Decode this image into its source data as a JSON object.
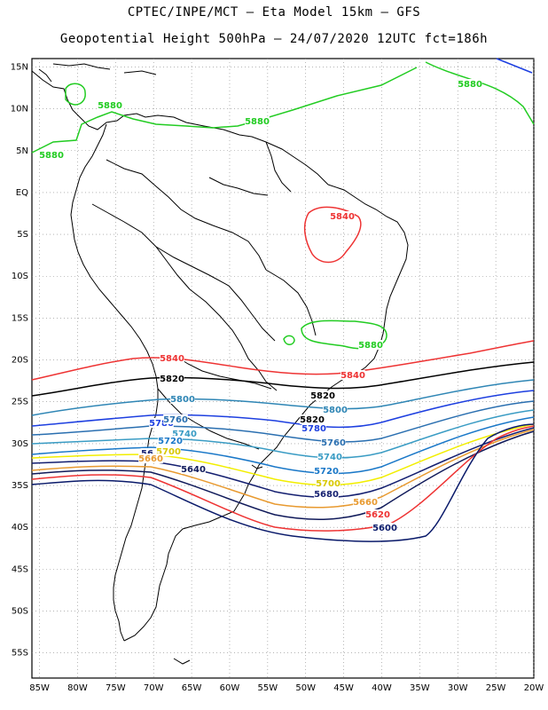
{
  "header": {
    "line1": "CPTEC/INPE/MCT –  Eta Model 15km – GFS",
    "line2": "Geopotential Height 500hPa – 24/07/2020 12UTC fct=186h"
  },
  "map": {
    "lon_range": [
      -86,
      -20
    ],
    "lat_range": [
      -58,
      16
    ],
    "x_ticks": [
      "85W",
      "80W",
      "75W",
      "70W",
      "65W",
      "60W",
      "55W",
      "50W",
      "45W",
      "40W",
      "35W",
      "30W",
      "25W",
      "20W"
    ],
    "y_ticks": [
      "15N",
      "10N",
      "5N",
      "EQ",
      "5S",
      "10S",
      "15S",
      "20S",
      "25S",
      "30S",
      "35S",
      "40S",
      "45S",
      "50S",
      "55S"
    ],
    "colors": {
      "5880": "#22cc22",
      "5840": "#ee3333",
      "5820": "#000000",
      "5800": "#2f86b5",
      "5780": "#1d3fe0",
      "5760": "#2a6fb0",
      "5740": "#3a9cc4",
      "5720": "#1a78c8",
      "5700": "#f2ee00",
      "5680": "#141f70",
      "5660": "#e89a30",
      "5640": "#101a5a",
      "5620": "#ee3333",
      "5600": "#0a1a6a",
      "coast": "#000000",
      "grid": "#888888"
    },
    "contour_labels": [
      {
        "text": "5880",
        "color": "#22cc22"
      },
      {
        "text": "5880",
        "color": "#22cc22"
      },
      {
        "text": "5880",
        "color": "#22cc22"
      },
      {
        "text": "5880",
        "color": "#22cc22"
      },
      {
        "text": "5880",
        "color": "#22cc22"
      },
      {
        "text": "5840",
        "color": "#ee3333"
      },
      {
        "text": "5840",
        "color": "#ee3333"
      },
      {
        "text": "5840",
        "color": "#ee3333"
      },
      {
        "text": "5820",
        "color": "#000000"
      },
      {
        "text": "5820",
        "color": "#000000"
      },
      {
        "text": "5820",
        "color": "#000000"
      },
      {
        "text": "5800",
        "color": "#2f86b5"
      },
      {
        "text": "5800",
        "color": "#2f86b5"
      },
      {
        "text": "5780",
        "color": "#1d3fe0"
      },
      {
        "text": "5780",
        "color": "#1d3fe0"
      },
      {
        "text": "5760",
        "color": "#2a6fb0"
      },
      {
        "text": "5760",
        "color": "#2a6fb0"
      },
      {
        "text": "5740",
        "color": "#3a9cc4"
      },
      {
        "text": "5740",
        "color": "#3a9cc4"
      },
      {
        "text": "5720",
        "color": "#1a78c8"
      },
      {
        "text": "5720",
        "color": "#1a78c8"
      },
      {
        "text": "5700",
        "color": "#d8c800"
      },
      {
        "text": "5700",
        "color": "#d8c800"
      },
      {
        "text": "56",
        "color": "#141f70"
      },
      {
        "text": "5680",
        "color": "#141f70"
      },
      {
        "text": "5660",
        "color": "#e89a30"
      },
      {
        "text": "5660",
        "color": "#e89a30"
      },
      {
        "text": "5640",
        "color": "#101a5a"
      },
      {
        "text": "5620",
        "color": "#ee3333"
      },
      {
        "text": "5600",
        "color": "#0a1a6a"
      }
    ]
  }
}
